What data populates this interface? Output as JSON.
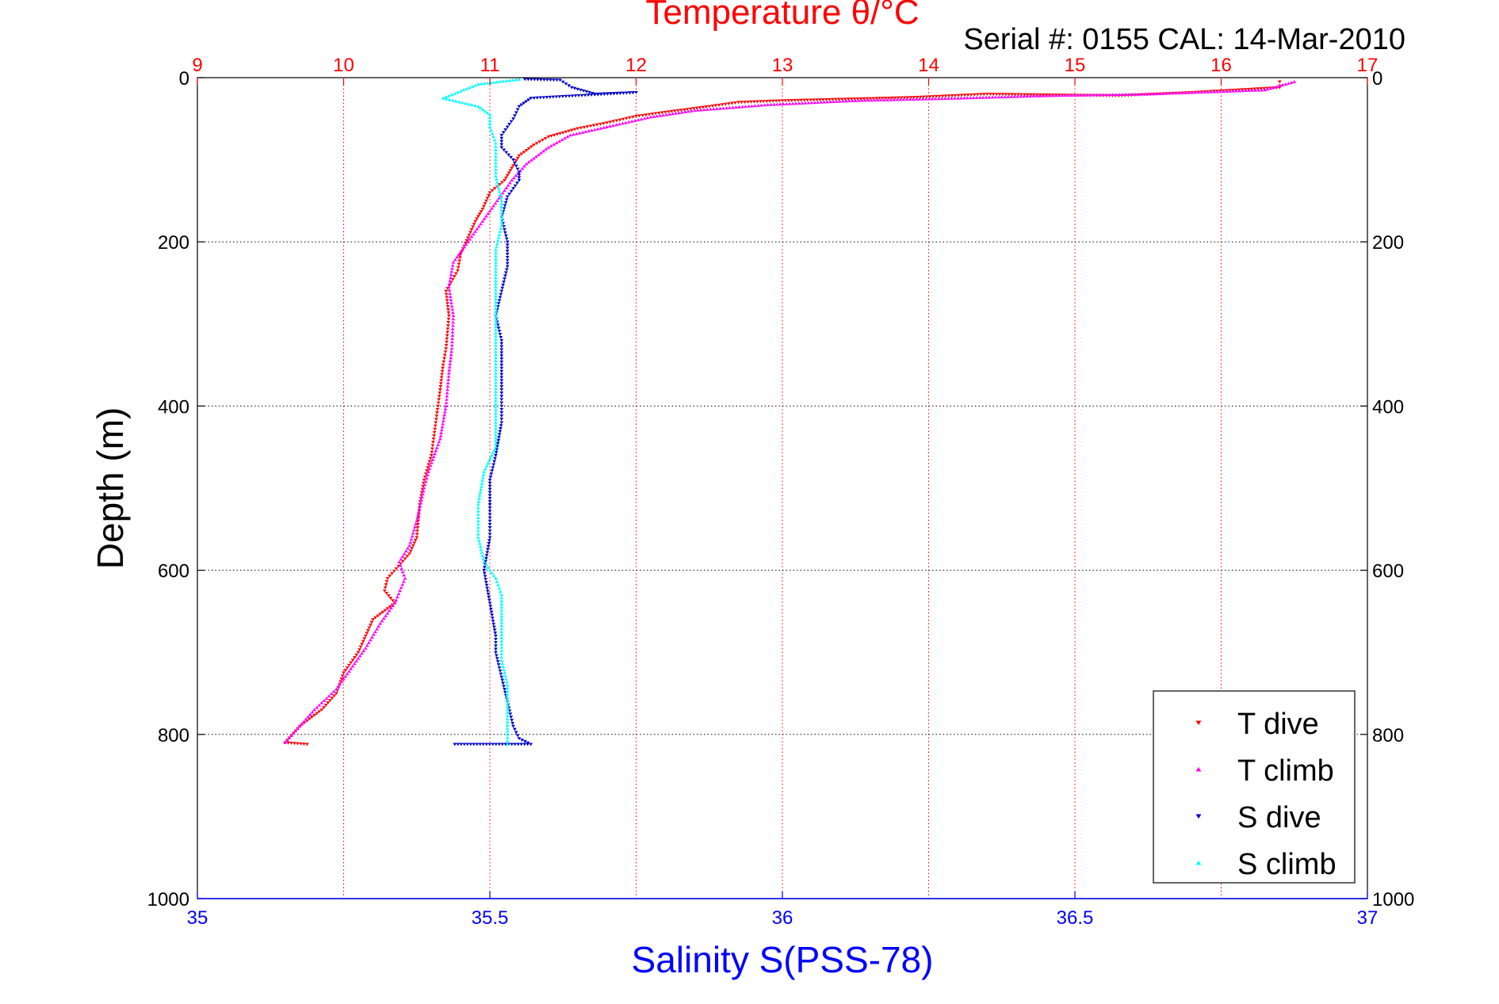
{
  "chart_data": {
    "type": "scatter",
    "title": "Temperature θ/°C",
    "subtitle": "Serial #: 0155  CAL: 14-Mar-2010",
    "xlabel_bottom": "Salinity S(PSS-78)",
    "ylabel": "Depth (m)",
    "colors": {
      "temperature_axis": "#ff0000",
      "salinity_axis": "#0000ff",
      "grid_vertical": "#ff0000",
      "grid_horizontal": "#000000"
    },
    "axes": {
      "y": {
        "range": [
          0,
          1000
        ],
        "reversed": true,
        "ticks": [
          0,
          200,
          400,
          600,
          800,
          1000
        ],
        "tick_labels": [
          "0",
          "200",
          "400",
          "600",
          "800",
          "1000"
        ]
      },
      "x_top": {
        "range": [
          9,
          17
        ],
        "ticks": [
          9,
          10,
          11,
          12,
          13,
          14,
          15,
          16,
          17
        ],
        "tick_labels": [
          "9",
          "10",
          "11",
          "12",
          "13",
          "14",
          "15",
          "16",
          "17"
        ]
      },
      "x_bottom": {
        "range": [
          35,
          37
        ],
        "ticks": [
          35,
          35.5,
          36,
          36.5,
          37
        ],
        "tick_labels": [
          "35",
          "35.5",
          "36",
          "36.5",
          "37"
        ]
      }
    },
    "grid": true,
    "legend": {
      "placement": "bottom-right"
    },
    "series": [
      {
        "name": "T dive",
        "axis": "x_top",
        "color": "#ff0000",
        "marker": "triangle-down",
        "points": [
          [
            16.4,
            5
          ],
          [
            16.4,
            10
          ],
          [
            16.4,
            12
          ],
          [
            15.8,
            18
          ],
          [
            15.3,
            22
          ],
          [
            14.4,
            20
          ],
          [
            13.9,
            24
          ],
          [
            13.0,
            28
          ],
          [
            12.7,
            30
          ],
          [
            12.5,
            35
          ],
          [
            12.2,
            42
          ],
          [
            12.0,
            47
          ],
          [
            11.8,
            55
          ],
          [
            11.6,
            62
          ],
          [
            11.4,
            72
          ],
          [
            11.3,
            82
          ],
          [
            11.2,
            95
          ],
          [
            11.15,
            110
          ],
          [
            11.1,
            125
          ],
          [
            11.0,
            140
          ],
          [
            10.95,
            160
          ],
          [
            10.9,
            175
          ],
          [
            10.85,
            195
          ],
          [
            10.8,
            215
          ],
          [
            10.78,
            235
          ],
          [
            10.7,
            260
          ],
          [
            10.72,
            290
          ],
          [
            10.7,
            330
          ],
          [
            10.68,
            350
          ],
          [
            10.66,
            380
          ],
          [
            10.63,
            420
          ],
          [
            10.6,
            460
          ],
          [
            10.55,
            490
          ],
          [
            10.52,
            520
          ],
          [
            10.5,
            560
          ],
          [
            10.45,
            580
          ],
          [
            10.3,
            610
          ],
          [
            10.28,
            625
          ],
          [
            10.35,
            640
          ],
          [
            10.2,
            660
          ],
          [
            10.15,
            680
          ],
          [
            10.1,
            700
          ],
          [
            10.0,
            725
          ],
          [
            9.95,
            750
          ],
          [
            9.85,
            770
          ],
          [
            9.7,
            790
          ],
          [
            9.6,
            810
          ],
          [
            9.75,
            812
          ]
        ]
      },
      {
        "name": "T climb",
        "axis": "x_top",
        "color": "#ff00ff",
        "marker": "triangle-up",
        "points": [
          [
            16.5,
            5
          ],
          [
            16.3,
            15
          ],
          [
            15.5,
            20
          ],
          [
            14.8,
            22
          ],
          [
            14.2,
            25
          ],
          [
            13.5,
            28
          ],
          [
            12.9,
            33
          ],
          [
            12.4,
            40
          ],
          [
            12.1,
            48
          ],
          [
            11.8,
            60
          ],
          [
            11.55,
            70
          ],
          [
            11.4,
            85
          ],
          [
            11.25,
            105
          ],
          [
            11.15,
            125
          ],
          [
            11.05,
            150
          ],
          [
            10.95,
            175
          ],
          [
            10.85,
            200
          ],
          [
            10.75,
            225
          ],
          [
            10.72,
            255
          ],
          [
            10.75,
            290
          ],
          [
            10.74,
            330
          ],
          [
            10.72,
            360
          ],
          [
            10.7,
            400
          ],
          [
            10.66,
            440
          ],
          [
            10.58,
            480
          ],
          [
            10.55,
            500
          ],
          [
            10.5,
            540
          ],
          [
            10.45,
            570
          ],
          [
            10.38,
            590
          ],
          [
            10.42,
            610
          ],
          [
            10.35,
            640
          ],
          [
            10.25,
            665
          ],
          [
            10.15,
            695
          ],
          [
            10.05,
            720
          ],
          [
            9.95,
            745
          ],
          [
            9.8,
            770
          ],
          [
            9.7,
            790
          ],
          [
            9.6,
            810
          ]
        ]
      },
      {
        "name": "S dive",
        "axis": "x_bottom",
        "color": "#0000cc",
        "marker": "triangle-down",
        "points": [
          [
            35.56,
            2
          ],
          [
            35.62,
            3
          ],
          [
            35.64,
            12
          ],
          [
            35.68,
            20
          ],
          [
            35.75,
            18
          ],
          [
            35.57,
            25
          ],
          [
            35.55,
            35
          ],
          [
            35.54,
            50
          ],
          [
            35.53,
            60
          ],
          [
            35.52,
            70
          ],
          [
            35.52,
            85
          ],
          [
            35.54,
            100
          ],
          [
            35.55,
            115
          ],
          [
            35.55,
            125
          ],
          [
            35.53,
            145
          ],
          [
            35.52,
            170
          ],
          [
            35.53,
            200
          ],
          [
            35.53,
            230
          ],
          [
            35.52,
            260
          ],
          [
            35.51,
            290
          ],
          [
            35.52,
            320
          ],
          [
            35.52,
            350
          ],
          [
            35.52,
            380
          ],
          [
            35.52,
            420
          ],
          [
            35.51,
            460
          ],
          [
            35.5,
            490
          ],
          [
            35.5,
            520
          ],
          [
            35.5,
            560
          ],
          [
            35.49,
            600
          ],
          [
            35.5,
            640
          ],
          [
            35.51,
            680
          ],
          [
            35.51,
            700
          ],
          [
            35.52,
            730
          ],
          [
            35.53,
            760
          ],
          [
            35.54,
            790
          ],
          [
            35.55,
            805
          ],
          [
            35.57,
            812
          ],
          [
            35.44,
            812
          ]
        ]
      },
      {
        "name": "S climb",
        "axis": "x_bottom",
        "color": "#00ffff",
        "marker": "triangle-up",
        "points": [
          [
            35.55,
            2
          ],
          [
            35.48,
            8
          ],
          [
            35.42,
            25
          ],
          [
            35.48,
            35
          ],
          [
            35.5,
            45
          ],
          [
            35.5,
            60
          ],
          [
            35.51,
            80
          ],
          [
            35.51,
            100
          ],
          [
            35.51,
            120
          ],
          [
            35.52,
            150
          ],
          [
            35.52,
            180
          ],
          [
            35.51,
            210
          ],
          [
            35.51,
            240
          ],
          [
            35.51,
            270
          ],
          [
            35.51,
            300
          ],
          [
            35.51,
            330
          ],
          [
            35.51,
            360
          ],
          [
            35.51,
            390
          ],
          [
            35.51,
            420
          ],
          [
            35.51,
            450
          ],
          [
            35.49,
            480
          ],
          [
            35.48,
            520
          ],
          [
            35.48,
            560
          ],
          [
            35.49,
            590
          ],
          [
            35.51,
            610
          ],
          [
            35.52,
            630
          ],
          [
            35.52,
            660
          ],
          [
            35.52,
            690
          ],
          [
            35.52,
            710
          ],
          [
            35.53,
            740
          ],
          [
            35.53,
            770
          ],
          [
            35.53,
            800
          ],
          [
            35.53,
            812
          ]
        ]
      }
    ]
  }
}
